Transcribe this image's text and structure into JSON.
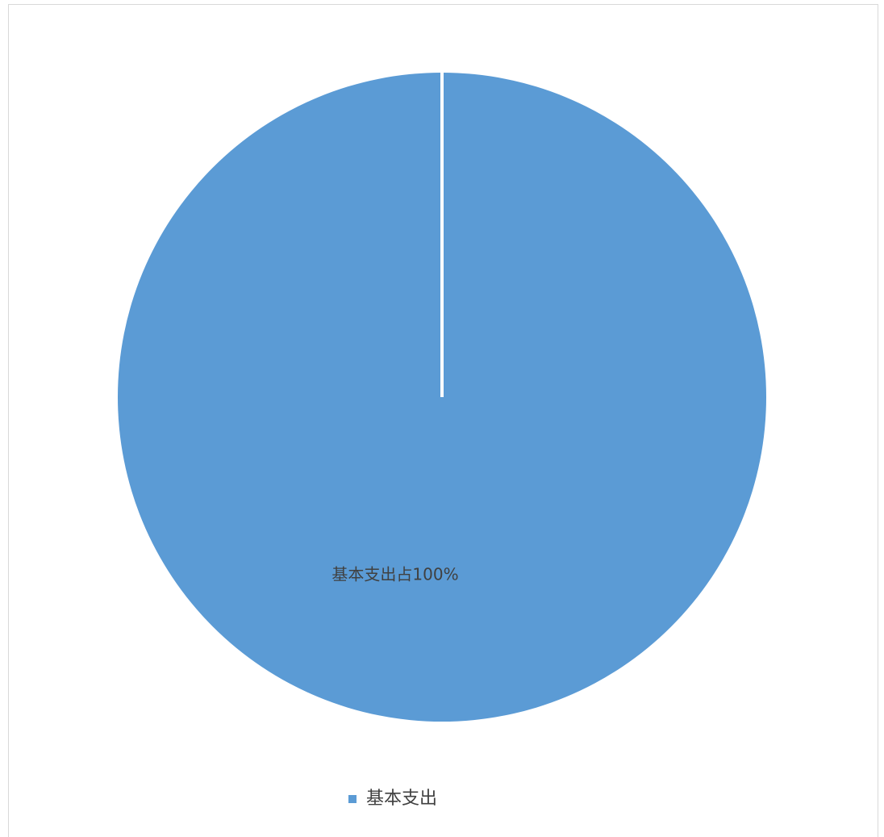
{
  "chart_data": {
    "type": "pie",
    "categories": [
      "基本支出"
    ],
    "values": [
      100
    ],
    "value_labels": [
      "基本支出占100%"
    ],
    "colors": [
      "#5b9bd5"
    ],
    "legend": "bottom"
  }
}
